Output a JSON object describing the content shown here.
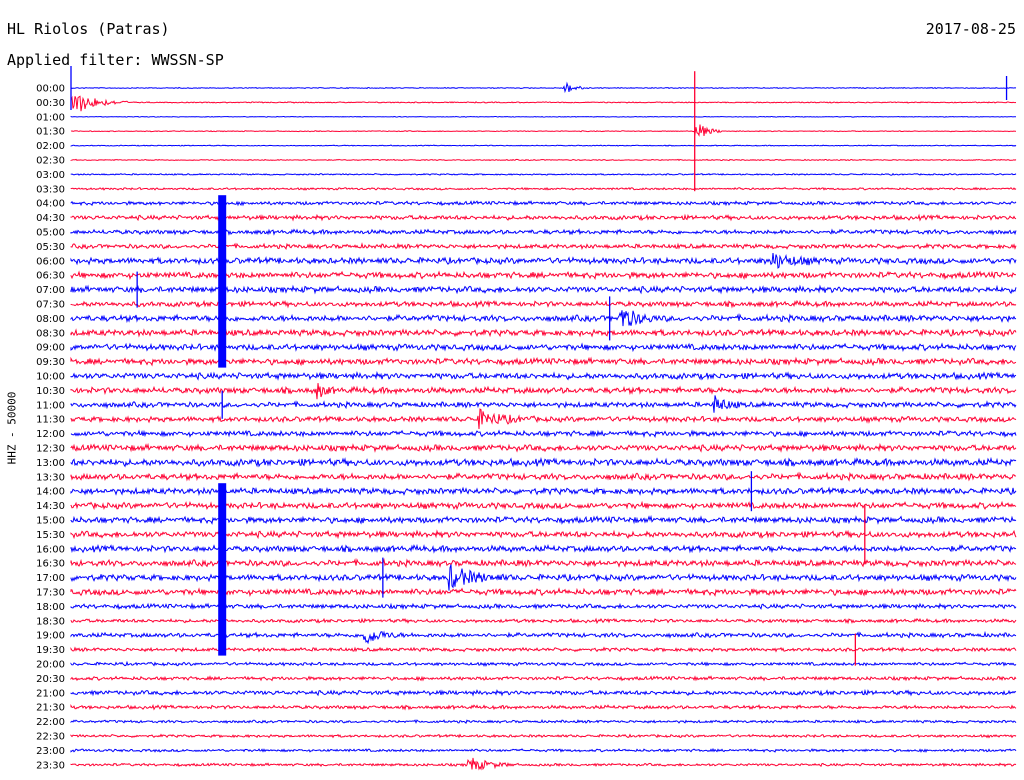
{
  "header": {
    "station": "HL Riolos (Patras)",
    "date": "2017-08-25",
    "filter": "Applied filter: WWSSN-SP"
  },
  "chart_data": {
    "type": "line",
    "title": "HL Riolos (Patras)",
    "ylabel": "HHZ - 50000",
    "row_labels": [
      "00:00",
      "00:30",
      "01:00",
      "01:30",
      "02:00",
      "02:30",
      "03:00",
      "03:30",
      "04:00",
      "04:30",
      "05:00",
      "05:30",
      "06:00",
      "06:30",
      "07:00",
      "07:30",
      "08:00",
      "08:30",
      "09:00",
      "09:30",
      "10:00",
      "10:30",
      "11:00",
      "11:30",
      "12:00",
      "12:30",
      "13:00",
      "13:30",
      "14:00",
      "14:30",
      "15:00",
      "15:30",
      "16:00",
      "16:30",
      "17:00",
      "17:30",
      "18:00",
      "18:30",
      "19:00",
      "19:30",
      "20:00",
      "20:30",
      "21:00",
      "21:30",
      "22:00",
      "22:30",
      "23:00",
      "23:30"
    ],
    "colors": [
      "#0000ff",
      "#ff0033"
    ],
    "row_noise": [
      0.5,
      0.6,
      0.4,
      0.5,
      0.5,
      0.6,
      0.8,
      1.2,
      2,
      2.5,
      2.5,
      2.5,
      3.5,
      3.5,
      3.5,
      3,
      3.5,
      3.5,
      3.5,
      3.5,
      3.5,
      3.5,
      3,
      3,
      3,
      3.5,
      4,
      3.5,
      3.5,
      3.5,
      3.5,
      3.5,
      3.5,
      3.5,
      3.5,
      3.5,
      2.5,
      2,
      2.5,
      2,
      1.8,
      2,
      2.5,
      2,
      1.5,
      1.5,
      1.5,
      1.5
    ],
    "events": [
      {
        "row": 0,
        "t": 0.52,
        "amp": 8,
        "dur": 0.03
      },
      {
        "row": 1,
        "t": 0.0,
        "amp": 14,
        "dur": 0.06
      },
      {
        "row": 3,
        "t": 0.66,
        "amp": 12,
        "dur": 0.03
      },
      {
        "row": 12,
        "t": 0.74,
        "amp": 8,
        "dur": 0.06
      },
      {
        "row": 16,
        "t": 0.58,
        "amp": 14,
        "dur": 0.04
      },
      {
        "row": 21,
        "t": 0.26,
        "amp": 8,
        "dur": 0.02
      },
      {
        "row": 22,
        "t": 0.68,
        "amp": 10,
        "dur": 0.03
      },
      {
        "row": 23,
        "t": 0.43,
        "amp": 9,
        "dur": 0.06
      },
      {
        "row": 34,
        "t": 0.4,
        "amp": 12,
        "dur": 0.06
      },
      {
        "row": 38,
        "t": 0.31,
        "amp": 10,
        "dur": 0.04
      },
      {
        "row": 47,
        "t": 0.42,
        "amp": 8,
        "dur": 0.05
      }
    ],
    "spikes": [
      {
        "row": 0,
        "t": 0.0,
        "amp": 22
      },
      {
        "row": 0,
        "t": 0.99,
        "amp": 12
      },
      {
        "row": 3,
        "t": 0.66,
        "amp": 60
      },
      {
        "row": 9,
        "t": 0.16,
        "amp": 22
      },
      {
        "row": 14,
        "t": 0.07,
        "amp": 18
      },
      {
        "row": 16,
        "t": 0.57,
        "amp": 22
      },
      {
        "row": 22,
        "t": 0.16,
        "amp": 14
      },
      {
        "row": 28,
        "t": 0.72,
        "amp": 20
      },
      {
        "row": 31,
        "t": 0.84,
        "amp": 30
      },
      {
        "row": 34,
        "t": 0.33,
        "amp": 20
      },
      {
        "row": 39,
        "t": 0.83,
        "amp": 16
      }
    ],
    "long_spike": {
      "row_start": 8,
      "row_end": 19,
      "t": 0.16
    },
    "long_spike2": {
      "row_start": 28,
      "row_end": 39,
      "t": 0.16
    }
  }
}
